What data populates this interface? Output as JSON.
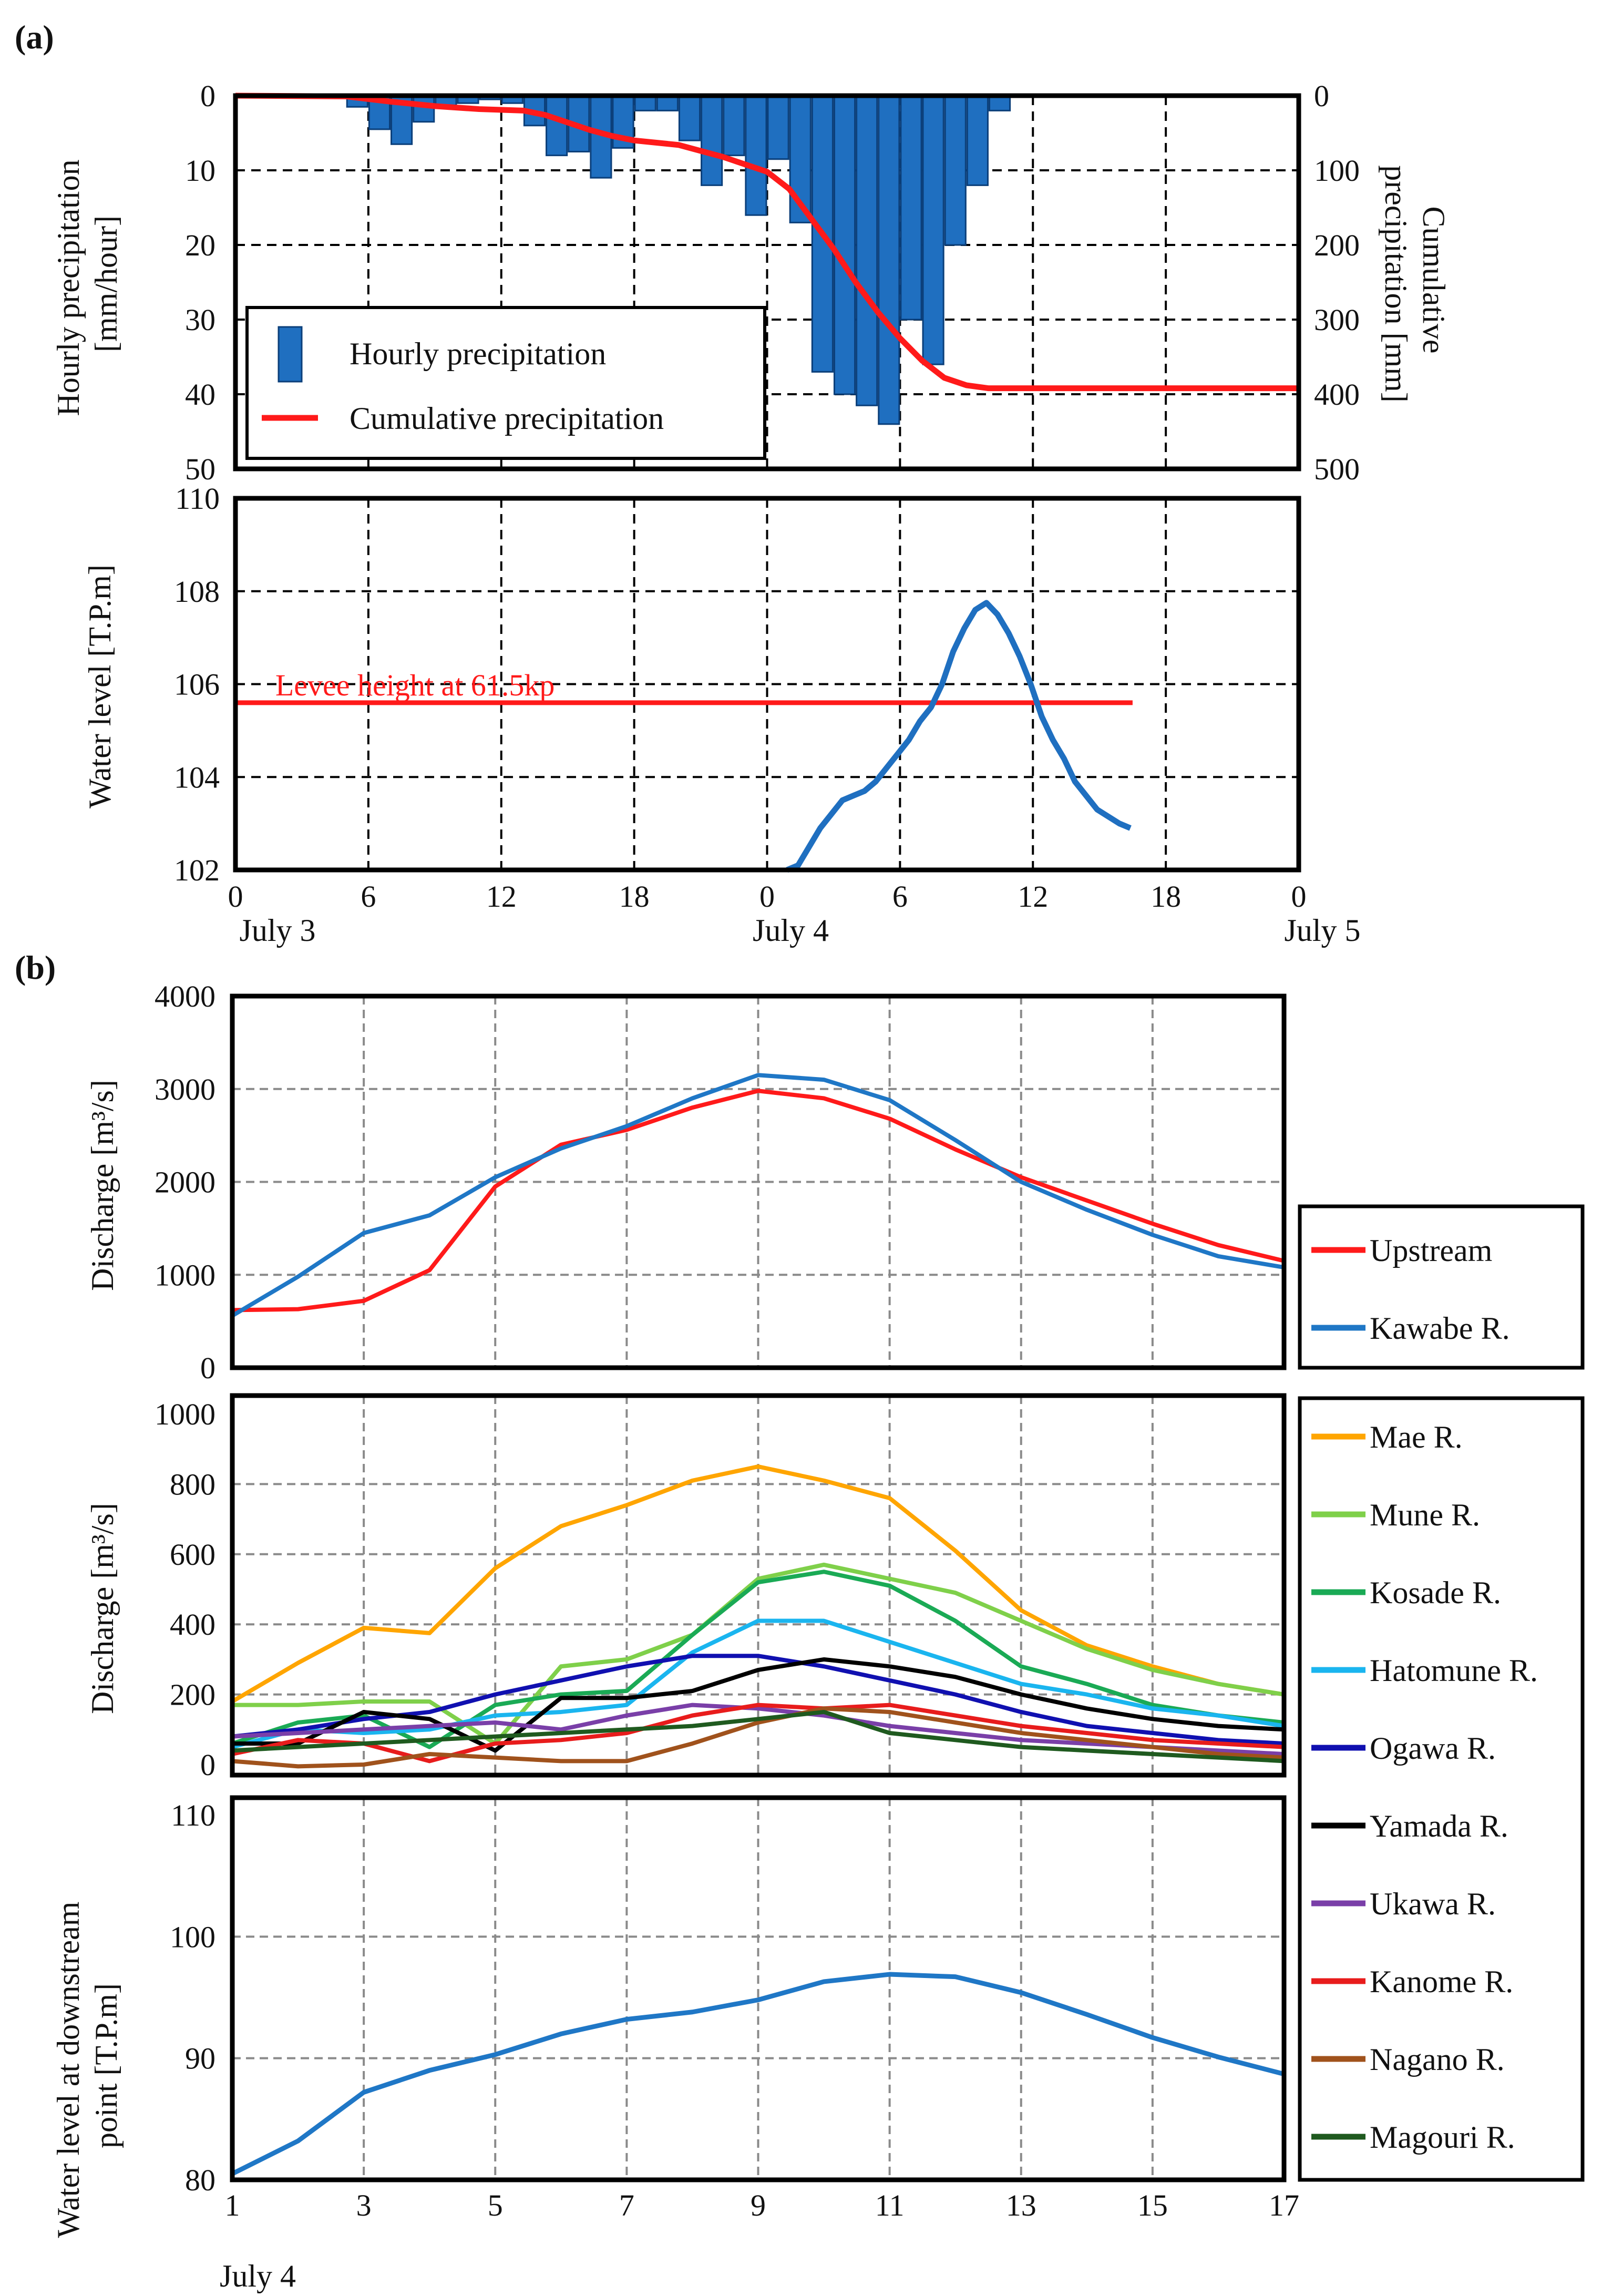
{
  "figure": {
    "label_a": "(a)",
    "label_b": "(b)"
  },
  "chart_data": [
    {
      "id": "a_precip",
      "type": "bar",
      "ylabel_left": [
        "Hourly precipitation",
        "[mm/hour]"
      ],
      "ylabel_right": [
        "Cumulative",
        "precipitation [mm]"
      ],
      "ylim_left": [
        50,
        0
      ],
      "ylim_right": [
        500,
        0
      ],
      "yticks_left": [
        0,
        10,
        20,
        30,
        40,
        50
      ],
      "yticks_right": [
        0,
        100,
        200,
        300,
        400,
        500
      ],
      "x_hours_range": [
        0,
        48
      ],
      "grid": true,
      "legend": {
        "position": "lower-left",
        "bar_label": "Hourly precipitation",
        "line_label": "Cumulative precipitation"
      },
      "hourly": {
        "name": "Hourly precipitation",
        "color": "#1f6fc0",
        "hour_start": [
          5,
          6,
          7,
          8,
          9,
          10,
          11,
          12,
          13,
          14,
          15,
          16,
          17,
          18,
          19,
          20,
          21,
          22,
          23,
          24,
          25,
          26,
          27,
          28,
          29,
          30,
          31,
          32,
          33,
          34
        ],
        "values": [
          1.5,
          4.5,
          6.5,
          3.5,
          1.5,
          1,
          0.5,
          1,
          4,
          8,
          7.5,
          11,
          7,
          2,
          2,
          6,
          12,
          8,
          16,
          8.5,
          17,
          37,
          40,
          41.5,
          44,
          30,
          36,
          20,
          12,
          2
        ]
      },
      "cumulative": {
        "name": "Cumulative precipitation",
        "color": "#ff1a1a",
        "hours": [
          0,
          5,
          7,
          9,
          11,
          13,
          14,
          16,
          17,
          18,
          20,
          22,
          24,
          25,
          26,
          27,
          28,
          29,
          30,
          31,
          32,
          33,
          34,
          48
        ],
        "values": [
          0,
          1,
          8,
          14,
          18,
          20,
          26,
          46,
          54,
          60,
          66,
          82,
          102,
          125,
          165,
          205,
          250,
          290,
          325,
          355,
          378,
          388,
          392,
          392
        ]
      }
    },
    {
      "id": "a_level",
      "type": "line",
      "ylabel": "Water level [T.P.m]",
      "ylim": [
        102,
        110
      ],
      "yticks": [
        102,
        104,
        106,
        108,
        110
      ],
      "xticks": [
        "0",
        "6",
        "12",
        "18",
        "0",
        "6",
        "12",
        "18",
        "0"
      ],
      "xtick_hours": [
        0,
        6,
        12,
        18,
        24,
        30,
        36,
        42,
        48
      ],
      "date_labels": [
        {
          "text": "July 3",
          "hour": 0
        },
        {
          "text": "July 4",
          "hour": 24
        },
        {
          "text": "July 5",
          "hour": 48
        }
      ],
      "grid": true,
      "levee": {
        "label": "Levee height at 61.5kp",
        "value": 105.6,
        "hour_range": [
          0,
          40.5
        ],
        "color": "#ff1a1a"
      },
      "series": [
        {
          "name": "Water level",
          "color": "#1f6fc0",
          "hours": [
            24.9,
            25.4,
            25.9,
            26.4,
            26.9,
            27.4,
            27.9,
            28.4,
            28.9,
            29.4,
            29.9,
            30.4,
            30.9,
            31.4,
            31.9,
            32.4,
            32.9,
            33.4,
            33.9,
            34.4,
            34.9,
            35.4,
            35.9,
            36.4,
            36.9,
            37.4,
            37.9,
            38.4,
            38.9,
            39.4,
            39.9,
            40.4
          ],
          "values": [
            102.0,
            102.1,
            102.5,
            102.9,
            103.2,
            103.5,
            103.6,
            103.7,
            103.9,
            104.2,
            104.5,
            104.8,
            105.2,
            105.5,
            106.0,
            106.7,
            107.2,
            107.6,
            107.75,
            107.5,
            107.1,
            106.6,
            106.0,
            105.3,
            104.8,
            104.4,
            103.9,
            103.6,
            103.3,
            103.15,
            103.0,
            102.9
          ]
        }
      ]
    },
    {
      "id": "b_main",
      "type": "line",
      "ylabel": "Discharge [m³/s]",
      "ylim": [
        0,
        4000
      ],
      "yticks": [
        0,
        1000,
        2000,
        3000,
        4000
      ],
      "x": [
        1,
        2,
        3,
        4,
        5,
        6,
        7,
        8,
        9,
        10,
        11,
        12,
        13,
        14,
        15,
        16,
        17
      ],
      "grid": true,
      "legend_position": "right",
      "series": [
        {
          "name": "Upstream",
          "color": "#ff1a1a",
          "values": [
            620,
            630,
            720,
            1050,
            1950,
            2400,
            2560,
            2800,
            2980,
            2900,
            2680,
            2350,
            2050,
            1800,
            1550,
            1320,
            1150
          ]
        },
        {
          "name": "Kawabe R.",
          "color": "#1f77c6",
          "values": [
            560,
            980,
            1450,
            1640,
            2050,
            2360,
            2600,
            2900,
            3150,
            3100,
            2880,
            2450,
            2000,
            1700,
            1430,
            1200,
            1080
          ]
        }
      ]
    },
    {
      "id": "b_tributaries",
      "type": "line",
      "ylabel": "Discharge [m³/s]",
      "ylim": [
        0,
        1000
      ],
      "yticks": [
        0,
        200,
        400,
        600,
        800,
        1000
      ],
      "x": [
        1,
        2,
        3,
        4,
        5,
        6,
        7,
        8,
        9,
        10,
        11,
        12,
        13,
        14,
        15,
        16,
        17
      ],
      "grid": true,
      "legend_position": "right",
      "series": [
        {
          "name": "Mae R.",
          "color": "#ffa500",
          "values": [
            180,
            290,
            390,
            375,
            560,
            680,
            740,
            810,
            850,
            810,
            760,
            610,
            440,
            340,
            280,
            230,
            200
          ]
        },
        {
          "name": "Mune R.",
          "color": "#7fd04a",
          "values": [
            170,
            170,
            180,
            180,
            60,
            280,
            300,
            370,
            530,
            570,
            530,
            490,
            410,
            330,
            270,
            230,
            200
          ]
        },
        {
          "name": "Kosade R.",
          "color": "#1aaa55",
          "values": [
            60,
            120,
            140,
            50,
            170,
            200,
            210,
            370,
            520,
            550,
            510,
            410,
            280,
            230,
            170,
            140,
            120
          ]
        },
        {
          "name": "Hatomune R.",
          "color": "#1ab5ef",
          "values": [
            50,
            100,
            90,
            100,
            140,
            150,
            170,
            320,
            410,
            410,
            350,
            290,
            230,
            200,
            160,
            140,
            110
          ]
        },
        {
          "name": "Ogawa R.",
          "color": "#1010b0",
          "values": [
            80,
            100,
            130,
            150,
            200,
            240,
            280,
            310,
            310,
            280,
            240,
            200,
            150,
            110,
            90,
            70,
            60
          ]
        },
        {
          "name": "Yamada R.",
          "color": "#000000",
          "values": [
            60,
            60,
            150,
            130,
            40,
            190,
            190,
            210,
            270,
            300,
            280,
            250,
            200,
            160,
            130,
            110,
            100
          ]
        },
        {
          "name": "Ukawa R.",
          "color": "#7a3fa8",
          "values": [
            80,
            90,
            100,
            110,
            120,
            100,
            140,
            170,
            160,
            140,
            110,
            90,
            70,
            60,
            50,
            40,
            30
          ]
        },
        {
          "name": "Kanome R.",
          "color": "#e81c1c",
          "values": [
            30,
            70,
            60,
            10,
            60,
            70,
            90,
            140,
            170,
            160,
            170,
            140,
            110,
            90,
            70,
            60,
            50
          ]
        },
        {
          "name": "Nagano R.",
          "color": "#a0521c",
          "values": [
            10,
            -5,
            0,
            30,
            20,
            10,
            10,
            60,
            120,
            160,
            150,
            120,
            90,
            70,
            50,
            30,
            20
          ]
        },
        {
          "name": "Magouri R.",
          "color": "#1f5a1f",
          "values": [
            40,
            50,
            60,
            70,
            80,
            90,
            100,
            110,
            130,
            150,
            90,
            70,
            50,
            40,
            30,
            20,
            10
          ]
        }
      ]
    },
    {
      "id": "b_level",
      "type": "line",
      "ylabel": [
        "Water level at downstream",
        "point [T.P.m]"
      ],
      "ylim": [
        80,
        110
      ],
      "yticks": [
        80,
        90,
        100,
        110
      ],
      "x": [
        1,
        2,
        3,
        4,
        5,
        6,
        7,
        8,
        9,
        10,
        11,
        12,
        13,
        14,
        15,
        16,
        17
      ],
      "xticks": [
        "1",
        "3",
        "5",
        "7",
        "9",
        "11",
        "13",
        "15",
        "17"
      ],
      "xtick_values": [
        1,
        3,
        5,
        7,
        9,
        11,
        13,
        15,
        17
      ],
      "date_label": "July 4",
      "grid": true,
      "series": [
        {
          "name": "Water level",
          "color": "#1f77c6",
          "values": [
            80.5,
            83.2,
            87.2,
            89.0,
            90.3,
            92.0,
            93.2,
            93.8,
            94.8,
            96.3,
            96.9,
            96.7,
            95.4,
            93.6,
            91.7,
            90.1,
            88.7
          ]
        }
      ]
    }
  ]
}
